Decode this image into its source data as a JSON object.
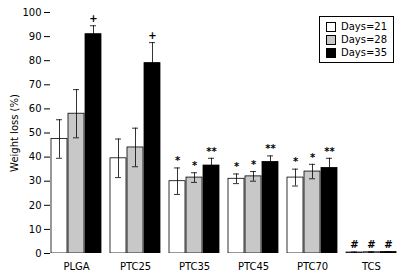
{
  "chart_data": {
    "type": "bar",
    "categories": [
      "PLGA",
      "PTC25",
      "PTC35",
      "PTC45",
      "PTC70",
      "TCS"
    ],
    "series": [
      {
        "name": "Days=21",
        "color": "#ffffff",
        "values": [
          47.5,
          39.5,
          30.0,
          31.0,
          31.5,
          0.4
        ],
        "errors": [
          8.0,
          8.0,
          5.5,
          2.0,
          3.5,
          0.2
        ]
      },
      {
        "name": "Days=28",
        "color": "#c8c8c8",
        "values": [
          58.0,
          44.0,
          31.5,
          32.0,
          34.0,
          0.5
        ],
        "errors": [
          10.0,
          8.0,
          2.0,
          2.0,
          3.0,
          0.2
        ]
      },
      {
        "name": "Days=35",
        "color": "#000000",
        "values": [
          91.0,
          79.0,
          36.5,
          38.0,
          35.5,
          0.6
        ],
        "errors": [
          3.5,
          8.5,
          3.0,
          2.5,
          4.0,
          0.2
        ]
      }
    ],
    "ylabel": "Weight loss (%)",
    "ylim": [
      0,
      100
    ],
    "yticks": [
      0,
      10,
      20,
      30,
      40,
      50,
      60,
      70,
      80,
      90,
      100
    ],
    "grid": false,
    "legend": "upper right",
    "annotations": [
      {
        "category": "PLGA",
        "series": "Days=35",
        "text": "+"
      },
      {
        "category": "PTC25",
        "series": "Days=35",
        "text": "+"
      },
      {
        "category": "PTC35",
        "series": "Days=21",
        "text": "*"
      },
      {
        "category": "PTC35",
        "series": "Days=28",
        "text": "*"
      },
      {
        "category": "PTC35",
        "series": "Days=35",
        "text": "**"
      },
      {
        "category": "PTC45",
        "series": "Days=21",
        "text": "*"
      },
      {
        "category": "PTC45",
        "series": "Days=28",
        "text": "*"
      },
      {
        "category": "PTC45",
        "series": "Days=35",
        "text": "**"
      },
      {
        "category": "PTC70",
        "series": "Days=21",
        "text": "*"
      },
      {
        "category": "PTC70",
        "series": "Days=28",
        "text": "*"
      },
      {
        "category": "PTC70",
        "series": "Days=35",
        "text": "**"
      },
      {
        "category": "TCS",
        "series": "Days=21",
        "text": "#"
      },
      {
        "category": "TCS",
        "series": "Days=28",
        "text": "#"
      },
      {
        "category": "TCS",
        "series": "Days=35",
        "text": "#"
      }
    ]
  }
}
